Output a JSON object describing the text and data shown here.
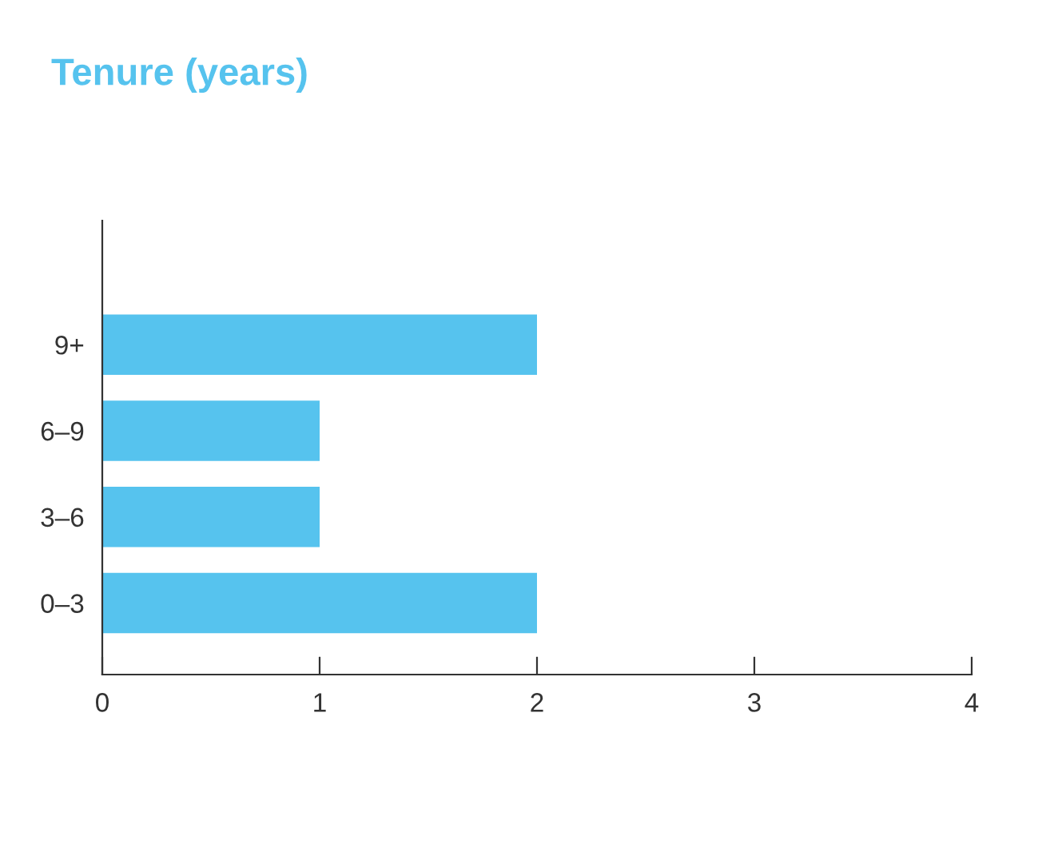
{
  "chart_data": {
    "type": "bar",
    "orientation": "horizontal",
    "title": "Tenure (years)",
    "categories": [
      "9+",
      "6–9",
      "3–6",
      "0–3"
    ],
    "values": [
      2,
      1,
      1,
      2
    ],
    "color": "#56c3ee",
    "xlim": [
      0,
      4
    ],
    "xticks": [
      0,
      1,
      2,
      3,
      4
    ],
    "grid": false,
    "legend": false
  }
}
